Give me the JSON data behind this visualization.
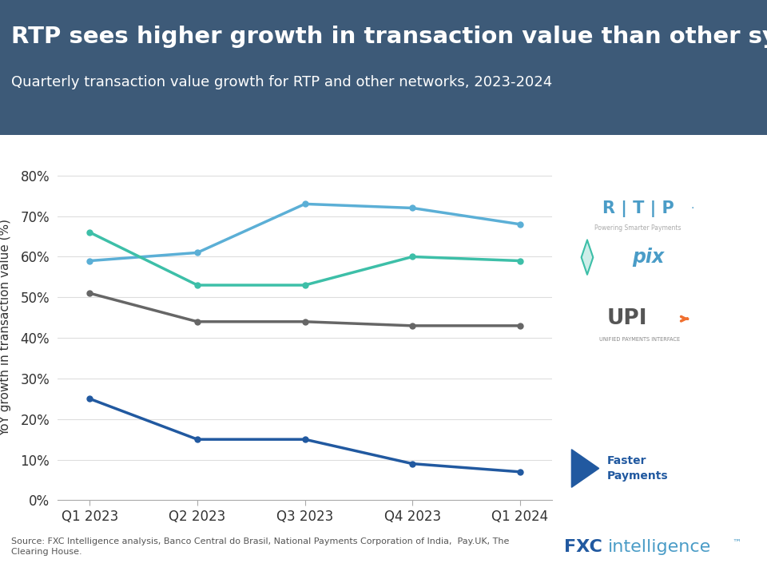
{
  "title": "RTP sees higher growth in transaction value than other systems",
  "subtitle": "Quarterly transaction value growth for RTP and other networks, 2023-2024",
  "source": "Source: FXC Intelligence analysis, Banco Central do Brasil, National Payments Corporation of India,  Pay.UK, The\nClearing House.",
  "x_labels": [
    "Q1 2023",
    "Q2 2023",
    "Q3 2023",
    "Q4 2023",
    "Q1 2024"
  ],
  "series": [
    {
      "name": "RTP",
      "values": [
        59,
        61,
        73,
        72,
        68
      ],
      "color": "#5bafd6",
      "linewidth": 2.5
    },
    {
      "name": "Pix",
      "values": [
        66,
        53,
        53,
        60,
        59
      ],
      "color": "#3dbfa8",
      "linewidth": 2.5
    },
    {
      "name": "UPI",
      "values": [
        51,
        44,
        44,
        43,
        43
      ],
      "color": "#666666",
      "linewidth": 2.5
    },
    {
      "name": "Faster Payments",
      "values": [
        25,
        15,
        15,
        9,
        7
      ],
      "color": "#2159a0",
      "linewidth": 2.5
    }
  ],
  "ylim": [
    0,
    85
  ],
  "yticks": [
    0,
    10,
    20,
    30,
    40,
    50,
    60,
    70,
    80
  ],
  "ytick_labels": [
    "0%",
    "10%",
    "20%",
    "30%",
    "40%",
    "50%",
    "60%",
    "70%",
    "80%"
  ],
  "ylabel": "YoY growth in transaction value (%)",
  "header_bg_color": "#3d5a78",
  "header_text_color": "#ffffff",
  "plot_bg_color": "#ffffff",
  "grid_color": "#dddddd",
  "title_fontsize": 21,
  "subtitle_fontsize": 13,
  "axis_fontsize": 11,
  "tick_fontsize": 12,
  "source_fontsize": 8
}
